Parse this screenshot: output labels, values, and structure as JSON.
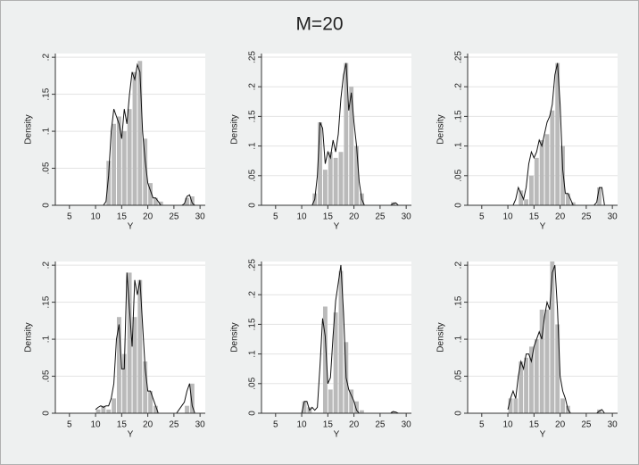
{
  "title": "M=20",
  "chart_data": [
    {
      "type": "histogram",
      "xlabel": "Y",
      "ylabel": "Density",
      "bins": [
        10,
        11,
        12,
        13,
        14,
        15,
        16,
        17,
        18,
        19,
        20,
        21,
        22,
        23,
        24,
        25,
        26,
        27,
        28,
        29
      ],
      "values": [
        0,
        0,
        0.06,
        0.11,
        0.12,
        0.1,
        0.13,
        0.18,
        0.195,
        0.09,
        0.03,
        0.01,
        0.005,
        0,
        0,
        0,
        0,
        0.01,
        0.012
      ],
      "color": "#bababa",
      "line": {
        "color": "#111111",
        "x": [
          10,
          10.5,
          11,
          11.5,
          12,
          12.5,
          13,
          13.5,
          14,
          14.5,
          15,
          15.5,
          16,
          16.5,
          17,
          17.5,
          18,
          18.5,
          19,
          19.5,
          20,
          20.5,
          21,
          21.5,
          22,
          22.5,
          23,
          23.5,
          24,
          24.5,
          25,
          25.5,
          26,
          26.5,
          27,
          27.5,
          28,
          28.5,
          29
        ],
        "values": [
          0,
          0,
          0,
          0,
          0.005,
          0.04,
          0.1,
          0.13,
          0.12,
          0.11,
          0.09,
          0.13,
          0.11,
          0.15,
          0.18,
          0.17,
          0.19,
          0.18,
          0.1,
          0.06,
          0.03,
          0.02,
          0.01,
          0.01,
          0.005,
          0,
          0,
          0,
          0,
          0,
          0,
          0,
          0,
          0,
          0.002,
          0.012,
          0.014,
          0.003,
          0
        ]
      },
      "xlim": [
        2.3,
        31
      ],
      "ylim": [
        0,
        0.205
      ],
      "xticks": [
        5,
        10,
        15,
        20,
        25,
        30
      ],
      "yticks": [
        0,
        {
          "value": 0.05,
          "label": ".05"
        },
        {
          "value": 0.1,
          "label": ".1"
        },
        {
          "value": 0.15,
          "label": ".15"
        },
        {
          "value": 0.2,
          "label": ".2"
        }
      ],
      "grid": true
    },
    {
      "type": "histogram",
      "xlabel": "Y",
      "ylabel": "Density",
      "bins": [
        10,
        11,
        12,
        13,
        14,
        15,
        16,
        17,
        18,
        19,
        20,
        21,
        22,
        23,
        24,
        25,
        26,
        27,
        28,
        29
      ],
      "values": [
        0,
        0,
        0.02,
        0.14,
        0.06,
        0.09,
        0.08,
        0.09,
        0.24,
        0.2,
        0.1,
        0.02,
        0,
        0,
        0,
        0,
        0,
        0.005,
        0
      ],
      "color": "#bababa",
      "line": {
        "color": "#111111",
        "x": [
          10,
          10.5,
          11,
          11.5,
          12,
          12.5,
          13,
          13.5,
          14,
          14.5,
          15,
          15.5,
          16,
          16.5,
          17,
          17.5,
          18,
          18.5,
          19,
          19.5,
          20,
          20.5,
          21,
          21.5,
          22,
          22.5,
          23,
          23.5,
          24,
          24.5,
          25,
          25.5,
          26,
          26.5,
          27,
          27.5,
          28,
          28.5,
          29
        ],
        "values": [
          0,
          0,
          0,
          0,
          0,
          0.01,
          0.05,
          0.14,
          0.13,
          0.07,
          0.09,
          0.08,
          0.11,
          0.09,
          0.12,
          0.18,
          0.22,
          0.24,
          0.16,
          0.19,
          0.14,
          0.1,
          0.04,
          0.01,
          0,
          0,
          0,
          0,
          0,
          0,
          0,
          0,
          0,
          0,
          0,
          0.003,
          0.004,
          0,
          0
        ]
      },
      "xlim": [
        2.3,
        31
      ],
      "ylim": [
        0,
        0.256
      ],
      "xticks": [
        5,
        10,
        15,
        20,
        25,
        30
      ],
      "yticks": [
        0,
        {
          "value": 0.05,
          "label": ".05"
        },
        {
          "value": 0.1,
          "label": ".1"
        },
        {
          "value": 0.15,
          "label": ".15"
        },
        {
          "value": 0.2,
          "label": ".2"
        },
        {
          "value": 0.25,
          "label": ".25"
        }
      ],
      "grid": true
    },
    {
      "type": "histogram",
      "xlabel": "Y",
      "ylabel": "Density",
      "bins": [
        10,
        11,
        12,
        13,
        14,
        15,
        16,
        17,
        18,
        19,
        20,
        21,
        22,
        23,
        24,
        25,
        26,
        27,
        28,
        29
      ],
      "values": [
        0,
        0,
        0.025,
        0.01,
        0.05,
        0.08,
        0.11,
        0.12,
        0.16,
        0.24,
        0.1,
        0.02,
        0.005,
        0,
        0,
        0,
        0,
        0.03,
        0
      ],
      "color": "#bababa",
      "line": {
        "color": "#111111",
        "x": [
          10,
          10.5,
          11,
          11.5,
          12,
          12.5,
          13,
          13.5,
          14,
          14.5,
          15,
          15.5,
          16,
          16.5,
          17,
          17.5,
          18,
          18.5,
          19,
          19.5,
          20,
          20.5,
          21,
          21.5,
          22,
          22.5,
          23,
          23.5,
          24,
          24.5,
          25,
          25.5,
          26,
          26.5,
          27,
          27.5,
          28,
          28.5,
          29
        ],
        "values": [
          0,
          0,
          0,
          0.01,
          0.03,
          0.02,
          0.01,
          0.03,
          0.07,
          0.09,
          0.08,
          0.09,
          0.11,
          0.1,
          0.12,
          0.14,
          0.15,
          0.17,
          0.22,
          0.24,
          0.17,
          0.06,
          0.02,
          0.02,
          0.01,
          0,
          0,
          0,
          0,
          0,
          0,
          0,
          0,
          0,
          0.005,
          0.03,
          0.03,
          0,
          0
        ]
      },
      "xlim": [
        2.3,
        31
      ],
      "ylim": [
        0,
        0.256
      ],
      "xticks": [
        5,
        10,
        15,
        20,
        25,
        30
      ],
      "yticks": [
        0,
        {
          "value": 0.05,
          "label": ".05"
        },
        {
          "value": 0.1,
          "label": ".1"
        },
        {
          "value": 0.15,
          "label": ".15"
        },
        {
          "value": 0.2,
          "label": ".2"
        },
        {
          "value": 0.25,
          "label": ".25"
        }
      ],
      "grid": true
    },
    {
      "type": "histogram",
      "xlabel": "Y",
      "ylabel": "Density",
      "bins": [
        10,
        11,
        12,
        13,
        14,
        15,
        16,
        17,
        18,
        19,
        20,
        21,
        22,
        23,
        24,
        25,
        26,
        27,
        28,
        29
      ],
      "values": [
        0.005,
        0.01,
        0.005,
        0.02,
        0.13,
        0.08,
        0.19,
        0.13,
        0.18,
        0.07,
        0.03,
        0.01,
        0,
        0,
        0,
        0,
        0,
        0.01,
        0.04
      ],
      "color": "#bababa",
      "line": {
        "color": "#111111",
        "x": [
          10,
          10.5,
          11,
          11.5,
          12,
          12.5,
          13,
          13.5,
          14,
          14.5,
          15,
          15.5,
          16,
          16.5,
          17,
          17.5,
          18,
          18.5,
          19,
          19.5,
          20,
          20.5,
          21,
          21.5,
          22,
          22.5,
          23,
          23.5,
          24,
          24.5,
          25,
          25.5,
          26,
          26.5,
          27,
          27.5,
          28,
          28.5,
          29
        ],
        "values": [
          0.005,
          0.008,
          0.01,
          0.008,
          0.01,
          0.01,
          0.02,
          0.04,
          0.1,
          0.12,
          0.06,
          0.06,
          0.19,
          0.14,
          0.09,
          0.18,
          0.16,
          0.18,
          0.12,
          0.06,
          0.03,
          0.03,
          0.02,
          0.01,
          0,
          0,
          0,
          0,
          0,
          0,
          0,
          0,
          0.005,
          0.01,
          0.015,
          0.03,
          0.04,
          0.01,
          0
        ]
      },
      "xlim": [
        2.3,
        31
      ],
      "ylim": [
        0,
        0.205
      ],
      "xticks": [
        5,
        10,
        15,
        20,
        25,
        30
      ],
      "yticks": [
        0,
        {
          "value": 0.05,
          "label": ".05"
        },
        {
          "value": 0.1,
          "label": ".1"
        },
        {
          "value": 0.15,
          "label": ".15"
        },
        {
          "value": 0.2,
          "label": ".2"
        }
      ],
      "grid": true
    },
    {
      "type": "histogram",
      "xlabel": "Y",
      "ylabel": "Density",
      "bins": [
        10,
        11,
        12,
        13,
        14,
        15,
        16,
        17,
        18,
        19,
        20,
        21,
        22,
        23,
        24,
        25,
        26,
        27,
        28,
        29
      ],
      "values": [
        0.02,
        0.01,
        0,
        0,
        0.18,
        0.04,
        0.17,
        0.24,
        0.12,
        0.04,
        0.02,
        0.005,
        0,
        0,
        0,
        0,
        0,
        0.003,
        0
      ],
      "color": "#bababa",
      "line": {
        "color": "#111111",
        "x": [
          10,
          10.5,
          11,
          11.5,
          12,
          12.5,
          13,
          13.5,
          14,
          14.5,
          15,
          15.5,
          16,
          16.5,
          17,
          17.5,
          18,
          18.5,
          19,
          19.5,
          20,
          20.5,
          21,
          21.5,
          22,
          22.5,
          23,
          23.5,
          24,
          24.5,
          25,
          25.5,
          26,
          26.5,
          27,
          27.5,
          28,
          28.5,
          29
        ],
        "values": [
          0,
          0.02,
          0.02,
          0.005,
          0.01,
          0.005,
          0.01,
          0.08,
          0.16,
          0.13,
          0.05,
          0.06,
          0.13,
          0.19,
          0.22,
          0.25,
          0.17,
          0.06,
          0.04,
          0.03,
          0.02,
          0.005,
          0,
          0,
          0,
          0,
          0,
          0,
          0,
          0,
          0,
          0,
          0,
          0,
          0,
          0.003,
          0.002,
          0,
          0
        ]
      },
      "xlim": [
        2.3,
        31
      ],
      "ylim": [
        0,
        0.256
      ],
      "xticks": [
        5,
        10,
        15,
        20,
        25,
        30
      ],
      "yticks": [
        0,
        {
          "value": 0.05,
          "label": ".05"
        },
        {
          "value": 0.1,
          "label": ".1"
        },
        {
          "value": 0.15,
          "label": ".15"
        },
        {
          "value": 0.2,
          "label": ".2"
        },
        {
          "value": 0.25,
          "label": ".25"
        }
      ],
      "grid": true
    },
    {
      "type": "histogram",
      "xlabel": "Y",
      "ylabel": "Density",
      "bins": [
        10,
        11,
        12,
        13,
        14,
        15,
        16,
        17,
        18,
        19,
        20,
        21,
        22,
        23,
        24,
        25,
        26,
        27,
        28,
        29
      ],
      "values": [
        0.02,
        0.02,
        0.07,
        0.075,
        0.09,
        0.1,
        0.14,
        0.14,
        0.205,
        0.12,
        0.02,
        0.01,
        0,
        0,
        0,
        0,
        0,
        0.005,
        0
      ],
      "color": "#bababa",
      "line": {
        "color": "#111111",
        "x": [
          10,
          10.5,
          11,
          11.5,
          12,
          12.5,
          13,
          13.5,
          14,
          14.5,
          15,
          15.5,
          16,
          16.5,
          17,
          17.5,
          18,
          18.5,
          19,
          19.5,
          20,
          20.5,
          21,
          21.5,
          22,
          22.5,
          23,
          23.5,
          24,
          24.5,
          25,
          25.5,
          26,
          26.5,
          27,
          27.5,
          28,
          28.5,
          29
        ],
        "values": [
          0.005,
          0.02,
          0.03,
          0.02,
          0.05,
          0.07,
          0.06,
          0.08,
          0.08,
          0.07,
          0.09,
          0.1,
          0.11,
          0.1,
          0.13,
          0.15,
          0.14,
          0.19,
          0.2,
          0.14,
          0.05,
          0.03,
          0.02,
          0.005,
          0,
          0,
          0,
          0,
          0,
          0,
          0,
          0,
          0,
          0,
          0,
          0.003,
          0.005,
          0,
          0
        ]
      },
      "xlim": [
        2.3,
        31
      ],
      "ylim": [
        0,
        0.205
      ],
      "xticks": [
        5,
        10,
        15,
        20,
        25,
        30
      ],
      "yticks": [
        0,
        {
          "value": 0.05,
          "label": ".05"
        },
        {
          "value": 0.1,
          "label": ".1"
        },
        {
          "value": 0.15,
          "label": ".15"
        },
        {
          "value": 0.2,
          "label": ".2"
        }
      ],
      "grid": true
    }
  ]
}
